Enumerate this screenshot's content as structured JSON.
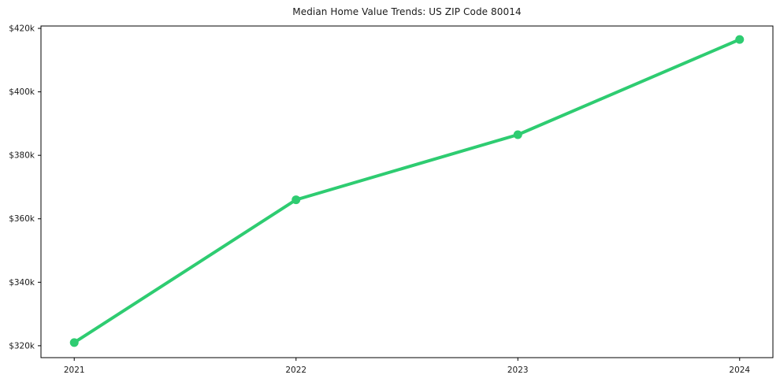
{
  "chart": {
    "title": "Median Home Value Trends: US ZIP Code 80014"
  },
  "chart_data": {
    "type": "line",
    "title": "Median Home Value Trends: US ZIP Code 80014",
    "x": [
      2021,
      2022,
      2023,
      2024
    ],
    "x_tick_labels": [
      "2021",
      "2022",
      "2023",
      "2024"
    ],
    "series": [
      {
        "name": "Median Home Value",
        "values": [
          321000,
          366000,
          386500,
          416500
        ]
      }
    ],
    "xlabel": "",
    "ylabel": "",
    "y_tick_values": [
      320000,
      340000,
      360000,
      380000,
      400000,
      420000
    ],
    "y_tick_labels": [
      "$320k",
      "$340k",
      "$360k",
      "$380k",
      "$400k",
      "$420k"
    ],
    "ylim": [
      316250,
      420750
    ],
    "xlim": [
      2020.85,
      2024.15
    ],
    "grid": false,
    "legend": "none",
    "line_color": "#2ecc71",
    "marker": "circle",
    "line_width": 4,
    "marker_radius": 5.5,
    "axis_color": "#000000",
    "text_color": "#1a1a1a",
    "background": "#ffffff"
  }
}
